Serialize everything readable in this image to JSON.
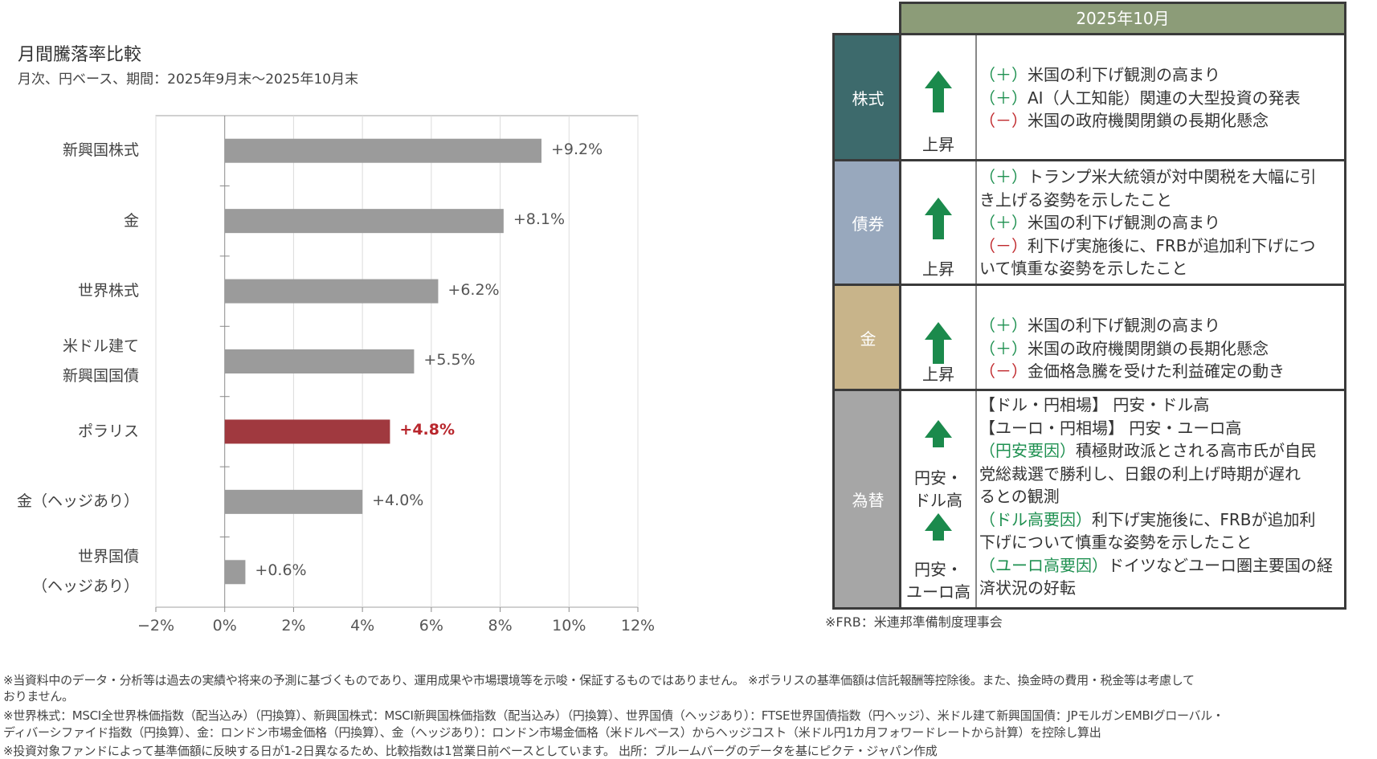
{
  "title": "月間騰落率比較",
  "subtitle": "月次、円ベース、期間：2025年9月末～2025年10月末",
  "chart_data": {
    "type": "bar",
    "orientation": "horizontal",
    "title": "月間騰落率比較",
    "categories": [
      "新興国株式",
      "金",
      "世界株式",
      "米ドル建て\n新興国国債",
      "ポラリス",
      "金（ヘッジあり）",
      "世界国債\n（ヘッジあり）"
    ],
    "values": [
      9.2,
      8.1,
      6.2,
      5.5,
      4.8,
      4.0,
      0.6
    ],
    "data_labels": [
      "+9.2%",
      "+8.1%",
      "+6.2%",
      "+5.5%",
      "+4.8%",
      "+4.0%",
      "+0.6%"
    ],
    "highlight_index": 4,
    "xlim": [
      -2,
      12
    ],
    "xticks": [
      -2,
      0,
      2,
      4,
      6,
      8,
      10,
      12
    ],
    "xtick_labels": [
      "−2%",
      "0%",
      "2%",
      "4%",
      "6%",
      "8%",
      "10%",
      "12%"
    ],
    "grid": true,
    "xlabel": "",
    "ylabel": "",
    "colors": {
      "bar": "#9b9b9b",
      "highlight": "#a0393f",
      "highlight_label": "#b8262c"
    }
  },
  "table": {
    "header": "2025年10月",
    "rows": [
      {
        "asset": "株式",
        "color": "#3d6a6c",
        "direction": "上昇",
        "lines": [
          {
            "tag": "（＋）",
            "cls": "plus",
            "text": "米国の利下げ観測の高まり"
          },
          {
            "tag": "（＋）",
            "cls": "plus",
            "text": "AI（人工知能）関連の大型投資の発表"
          },
          {
            "tag": "（－）",
            "cls": "minus",
            "text": "米国の政府機関閉鎖の長期化懸念"
          }
        ]
      },
      {
        "asset": "債券",
        "color": "#98a8bd",
        "direction": "上昇",
        "lines": [
          {
            "tag": "（＋）",
            "cls": "plus",
            "text": "トランプ米大統領が対中関税を大幅に引"
          },
          {
            "tag": "",
            "cls": "",
            "text": "き上げる姿勢を示したこと"
          },
          {
            "tag": "（＋）",
            "cls": "plus",
            "text": "米国の利下げ観測の高まり"
          },
          {
            "tag": "（－）",
            "cls": "minus",
            "text": "利下げ実施後に、FRBが追加利下げにつ"
          },
          {
            "tag": "",
            "cls": "",
            "text": "いて慎重な姿勢を示したこと"
          }
        ]
      },
      {
        "asset": "金",
        "color": "#c8b48a",
        "direction": "上昇",
        "lines": [
          {
            "tag": "（＋）",
            "cls": "plus",
            "text": "米国の利下げ観測の高まり"
          },
          {
            "tag": "（＋）",
            "cls": "plus",
            "text": "米国の政府機関閉鎖の長期化懸念"
          },
          {
            "tag": "（－）",
            "cls": "minus",
            "text": "金価格急騰を受けた利益確定の動き"
          }
        ]
      },
      {
        "asset": "為替",
        "color": "#a6a6a6",
        "direction": "円安・\nドル高",
        "direction2": "円安・\nユーロ高",
        "lines": [
          {
            "tag": "",
            "cls": "",
            "text": "【ドル・円相場】 円安・ドル高"
          },
          {
            "tag": "",
            "cls": "",
            "text": "【ユーロ・円相場】 円安・ユーロ高"
          },
          {
            "tag": "（円安要因）",
            "cls": "green",
            "text": "積極財政派とされる高市氏が自民"
          },
          {
            "tag": "",
            "cls": "",
            "text": "党総裁選で勝利し、日銀の利上げ時期が遅れ"
          },
          {
            "tag": "",
            "cls": "",
            "text": "るとの観測"
          },
          {
            "tag": "（ドル高要因）",
            "cls": "green",
            "text": "利下げ実施後に、FRBが追加利"
          },
          {
            "tag": "",
            "cls": "",
            "text": "下げについて慎重な姿勢を示したこと"
          },
          {
            "tag": "（ユーロ高要因）",
            "cls": "green",
            "text": "ドイツなどユーロ圏主要国の経"
          },
          {
            "tag": "",
            "cls": "",
            "text": "済状況の好転"
          }
        ]
      }
    ],
    "arrow_color": "#1b8a4c",
    "note": "※FRB：米連邦準備制度理事会"
  },
  "footer": [
    "※当資料中のデータ・分析等は過去の実績や将来の予測に基づくものであり、運用成果や市場環境等を示唆・保証するものではありません。 ※ポラリスの基準価額は信託報酬等控除後。また、換金時の費用・税金等は考慮して",
    "おりません。",
    "※世界株式：MSCI全世界株価指数（配当込み）（円換算）、新興国株式：MSCI新興国株価指数（配当込み）（円換算）、世界国債（ヘッジあり）：FTSE世界国債指数（円ヘッジ）、米ドル建て新興国国債：JPモルガンEMBIグローバル・",
    "ディバーシファイド指数（円換算）、金：ロンドン市場金価格（円換算）、金（ヘッジあり）：ロンドン市場金価格（米ドルベース）からヘッジコスト（米ドル円1カ月フォワードレートから計算）を控除し算出",
    "※投資対象ファンドによって基準価額に反映する日が1-2日異なるため、比較指数は1営業日前ベースとしています。 出所：ブルームバーグのデータを基にピクテ・ジャパン作成"
  ]
}
